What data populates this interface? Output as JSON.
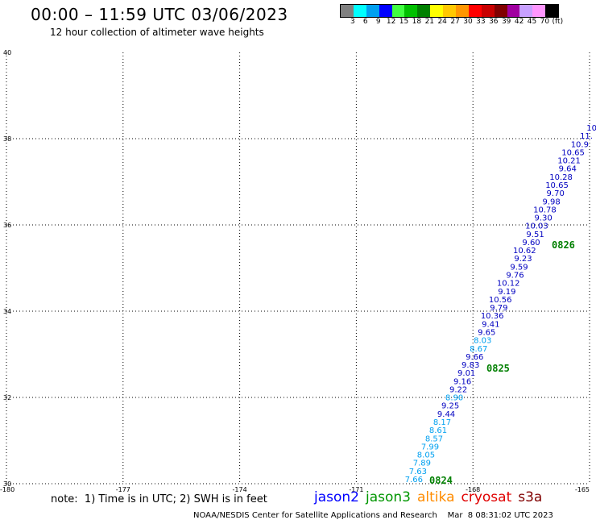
{
  "header": {
    "title": "00:00 – 11:59 UTC 03/06/2023",
    "subtitle": "12 hour collection of altimeter wave heights"
  },
  "colorbar": {
    "colors": [
      "#808080",
      "#00ffff",
      "#00a0f0",
      "#0000ff",
      "#40ff40",
      "#00c000",
      "#008000",
      "#ffff00",
      "#ffc800",
      "#ff9600",
      "#ff0000",
      "#c80000",
      "#800000",
      "#a000a0",
      "#c8a0ff",
      "#ff96ff",
      "#000000"
    ],
    "labels": [
      "3",
      "6",
      "9",
      "12",
      "15",
      "18",
      "21",
      "24",
      "27",
      "30",
      "33",
      "36",
      "39",
      "42",
      "45",
      "70",
      "(ft)"
    ]
  },
  "map": {
    "lon_range": [
      -180,
      -165
    ],
    "lat_range": [
      30,
      40
    ],
    "lon_ticks": [
      "-180",
      "-177",
      "-174",
      "-171",
      "-168",
      "-165"
    ],
    "lat_ticks": [
      "30",
      "32",
      "34",
      "36",
      "38",
      "40"
    ],
    "grid": "dotted"
  },
  "wave_track": {
    "light_color": "#00a0f0",
    "dark_color": "#0000c0",
    "points": [
      {
        "v": "10",
        "c": "dark"
      },
      {
        "v": "11.",
        "c": "dark"
      },
      {
        "v": "10.9",
        "c": "dark"
      },
      {
        "v": "10.65",
        "c": "dark"
      },
      {
        "v": "10.21",
        "c": "dark"
      },
      {
        "v": "9.64",
        "c": "dark"
      },
      {
        "v": "10.28",
        "c": "dark"
      },
      {
        "v": "10.65",
        "c": "dark"
      },
      {
        "v": "9.70",
        "c": "dark"
      },
      {
        "v": "9.98",
        "c": "dark"
      },
      {
        "v": "10.78",
        "c": "dark"
      },
      {
        "v": "9.30",
        "c": "dark"
      },
      {
        "v": "10.03",
        "c": "dark"
      },
      {
        "v": "9.51",
        "c": "dark"
      },
      {
        "v": "9.60",
        "c": "dark"
      },
      {
        "v": "10.62",
        "c": "dark"
      },
      {
        "v": "9.23",
        "c": "dark"
      },
      {
        "v": "9.59",
        "c": "dark"
      },
      {
        "v": "9.76",
        "c": "dark"
      },
      {
        "v": "10.12",
        "c": "dark"
      },
      {
        "v": "9.19",
        "c": "dark"
      },
      {
        "v": "10.56",
        "c": "dark"
      },
      {
        "v": "9.79",
        "c": "dark"
      },
      {
        "v": "10.36",
        "c": "dark"
      },
      {
        "v": "9.41",
        "c": "dark"
      },
      {
        "v": "9.65",
        "c": "dark"
      },
      {
        "v": "8.03",
        "c": "light"
      },
      {
        "v": "8.67",
        "c": "light"
      },
      {
        "v": "9.66",
        "c": "dark"
      },
      {
        "v": "9.83",
        "c": "dark"
      },
      {
        "v": "9.01",
        "c": "dark"
      },
      {
        "v": "9.16",
        "c": "dark"
      },
      {
        "v": "9.22",
        "c": "dark"
      },
      {
        "v": "8.90",
        "c": "light"
      },
      {
        "v": "9.25",
        "c": "dark"
      },
      {
        "v": "9.44",
        "c": "dark"
      },
      {
        "v": "8.17",
        "c": "light"
      },
      {
        "v": "8.61",
        "c": "light"
      },
      {
        "v": "8.57",
        "c": "light"
      },
      {
        "v": "7.99",
        "c": "light"
      },
      {
        "v": "8.05",
        "c": "light"
      },
      {
        "v": "7.89",
        "c": "light"
      },
      {
        "v": "7.63",
        "c": "light"
      },
      {
        "v": "7.66",
        "c": "light"
      }
    ],
    "time_labels": [
      "0826",
      "0825",
      "0824"
    ]
  },
  "note": "note:  1) Time is in UTC; 2) SWH is in feet",
  "legend": [
    {
      "label": "jason2",
      "color": "#0000ff"
    },
    {
      "label": "jason3",
      "color": "#009600"
    },
    {
      "label": "altika",
      "color": "#ff8c00"
    },
    {
      "label": "cryosat",
      "color": "#e00000"
    },
    {
      "label": "s3a",
      "color": "#800000"
    }
  ],
  "footer": "NOAA/NESDIS Center for Satellite Applications and Research    Mar  8 08:31:02 UTC 2023"
}
